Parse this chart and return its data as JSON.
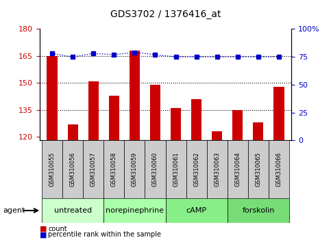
{
  "title": "GDS3702 / 1376416_at",
  "samples": [
    "GSM310055",
    "GSM310056",
    "GSM310057",
    "GSM310058",
    "GSM310059",
    "GSM310060",
    "GSM310061",
    "GSM310062",
    "GSM310063",
    "GSM310064",
    "GSM310065",
    "GSM310066"
  ],
  "counts": [
    165,
    127,
    151,
    143,
    168,
    149,
    136,
    141,
    123,
    135,
    128,
    148
  ],
  "percentiles": [
    78,
    75,
    78,
    77,
    79,
    77,
    75,
    75,
    75,
    75,
    75,
    75
  ],
  "ylim_left": [
    118,
    180
  ],
  "ylim_right": [
    0,
    100
  ],
  "yticks_left": [
    120,
    135,
    150,
    165,
    180
  ],
  "yticks_right": [
    0,
    25,
    50,
    75,
    100
  ],
  "bar_color": "#cc0000",
  "dot_color": "#0000cc",
  "groups": [
    {
      "label": "untreated",
      "start": 0,
      "end": 3,
      "color": "#ccffcc"
    },
    {
      "label": "norepinephrine",
      "start": 3,
      "end": 6,
      "color": "#aaffaa"
    },
    {
      "label": "cAMP",
      "start": 6,
      "end": 9,
      "color": "#88ee88"
    },
    {
      "label": "forskolin",
      "start": 9,
      "end": 12,
      "color": "#66dd66"
    }
  ],
  "agent_label": "agent",
  "legend_count": "count",
  "legend_percentile": "percentile rank within the sample",
  "grid_color": "#000000",
  "background_plot": "#ffffff",
  "background_label_row": "#cccccc",
  "background_group_row_light": "#ccffcc",
  "background_group_row_dark": "#88dd88"
}
